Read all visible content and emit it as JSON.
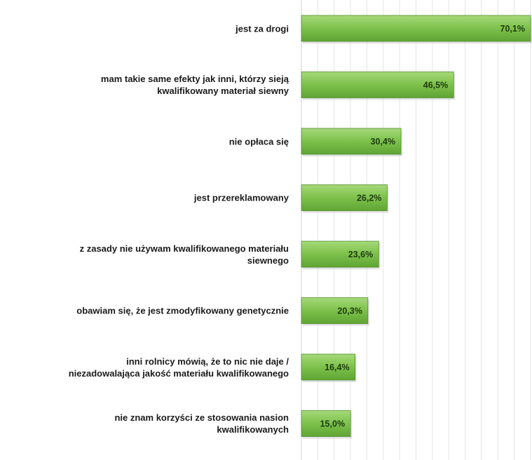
{
  "chart_data": {
    "type": "bar",
    "orientation": "horizontal",
    "title": "",
    "xlabel": "",
    "ylabel": "",
    "categories": [
      "jest za drogi",
      "mam takie same efekty jak inni, którzy sieją kwalifikowany materiał siewny",
      "nie opłaca się",
      "jest przereklamowany",
      "z zasady nie używam kwalifikowanego materiału siewnego",
      "obawiam się, że jest zmodyfikowany genetycznie",
      "inni rolnicy mówią, że to nic nie daje / niezadowalająca jakość materiału kwalifikowanego",
      "nie znam korzyści ze stosowania nasion kwalifikowanych"
    ],
    "label_lines": [
      [
        "jest za drogi"
      ],
      [
        "mam takie same efekty jak inni, którzy sieją",
        "kwalifikowany materiał siewny"
      ],
      [
        "nie opłaca się"
      ],
      [
        "jest przereklamowany"
      ],
      [
        "z zasady nie używam kwalifikowanego materiału",
        "siewnego"
      ],
      [
        "obawiam się, że jest zmodyfikowany genetycznie"
      ],
      [
        "inni rolnicy mówią, że to nic nie daje /",
        "niezadowalająca jakość materiału kwalifikowanego"
      ],
      [
        "nie znam korzyści ze stosowania nasion",
        "kwalifikowanych"
      ]
    ],
    "values": [
      70.1,
      46.5,
      30.4,
      26.2,
      23.6,
      20.3,
      16.4,
      15.0
    ],
    "data_labels": [
      "70,1%",
      "46,5%",
      "30,4%",
      "26,2%",
      "23,6%",
      "20,3%",
      "16,4%",
      "15,0%"
    ],
    "xlim": [
      0,
      70
    ],
    "grid": true,
    "bar_color": "#7dc24a",
    "bar_edge_color": "#4f8f2a"
  }
}
